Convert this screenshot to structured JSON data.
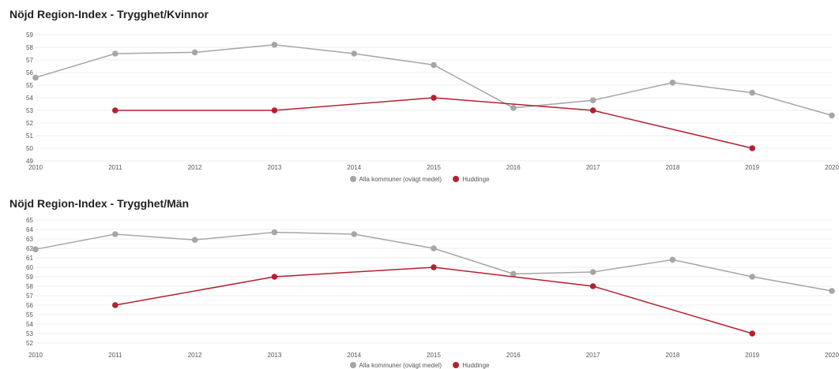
{
  "chart_data": [
    {
      "type": "line",
      "title": "Nöjd Region-Index - Trygghet/Kvinnor",
      "categories": [
        "2010",
        "2011",
        "2012",
        "2013",
        "2014",
        "2015",
        "2016",
        "2017",
        "2018",
        "2019",
        "2020"
      ],
      "y_ticks": [
        "49",
        "50",
        "51",
        "52",
        "53",
        "54",
        "55",
        "56",
        "57",
        "58",
        "59"
      ],
      "ylim": [
        49,
        59
      ],
      "grid": true,
      "legend_position": "bottom",
      "series": [
        {
          "name": "Alla kommuner (ovägt medel)",
          "color": "#a6a6a6",
          "values": [
            55.6,
            57.5,
            57.6,
            58.2,
            57.5,
            56.6,
            53.2,
            53.8,
            55.2,
            54.4,
            52.6
          ]
        },
        {
          "name": "Huddinge",
          "color": "#b5202e",
          "values": [
            null,
            53.0,
            null,
            53.0,
            null,
            54.0,
            null,
            53.0,
            null,
            50.0,
            null
          ]
        }
      ]
    },
    {
      "type": "line",
      "title": "Nöjd Region-Index - Trygghet/Män",
      "categories": [
        "2010",
        "2011",
        "2012",
        "2013",
        "2014",
        "2015",
        "2016",
        "2017",
        "2018",
        "2019",
        "2020"
      ],
      "y_ticks": [
        "52",
        "53",
        "54",
        "55",
        "56",
        "57",
        "58",
        "59",
        "60",
        "61",
        "62",
        "63",
        "64",
        "65"
      ],
      "ylim": [
        52,
        65
      ],
      "grid": true,
      "legend_position": "bottom",
      "series": [
        {
          "name": "Alla kommuner (ovägt medel)",
          "color": "#a6a6a6",
          "values": [
            61.9,
            63.5,
            62.9,
            63.7,
            63.5,
            62.0,
            59.3,
            59.5,
            60.8,
            59.0,
            57.5
          ]
        },
        {
          "name": "Huddinge",
          "color": "#b5202e",
          "values": [
            null,
            56.0,
            null,
            59.0,
            null,
            60.0,
            null,
            58.0,
            null,
            53.0,
            null
          ]
        }
      ]
    }
  ]
}
